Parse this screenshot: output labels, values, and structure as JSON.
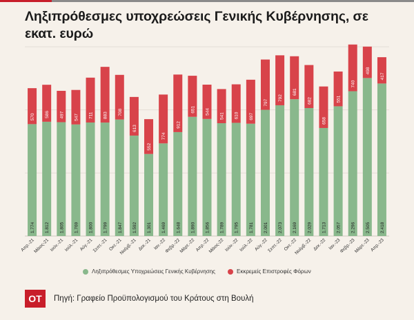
{
  "title": "Ληξιπρόθεσμες υποχρεώσεις Γενικής Κυβέρνησης, σε εκατ. ευρώ",
  "colors": {
    "green": "#89b88c",
    "red": "#d8434a",
    "accent": "#c81e2a",
    "background": "#f6f1ea"
  },
  "logo": {
    "text": "OT"
  },
  "footer": {
    "source": "Πηγή: Γραφείο Προϋπολογισμού του Κράτους στη Βουλή"
  },
  "chart_data": {
    "type": "bar",
    "stacked": true,
    "title": "Ληξιπρόθεσμες υποχρεώσεις Γενικής Κυβέρνησης, σε εκατ. ευρώ",
    "categories": [
      "Απρ.-21",
      "Μάιος-21",
      "Ιούν.-21",
      "Ιούλ.-21",
      "Αύγ.-21",
      "Σεπτ.-21",
      "Οκτ.-21",
      "Νοέμβ.-21",
      "Δεκ.-21",
      "Ιαν.-22",
      "Φεβρ.-22",
      "Μάρτ.-22",
      "Απρ.-22",
      "Μάιος-22",
      "Ιούν.-22",
      "Ιούλ.-22",
      "Αύγ.-22",
      "Σεπτ.-22",
      "Οκτ.-22",
      "Νοέμβ.-22",
      "Δεκ.-22",
      "Ιαν.-23",
      "Φεβρ.-23",
      "Μάρτ.-23",
      "Απρ.-23"
    ],
    "series": [
      {
        "name": "Ληξιπρόθεσμες Υποχρεώσεις Γενικής Κυβέρνησης",
        "color": "#89b88c",
        "labels": [
          "1.774",
          "1.812",
          "1.805",
          "1.769",
          "1.800",
          "1.799",
          "1.847",
          "1.592",
          "1.301",
          "1.469",
          "1.648",
          "1.890",
          "1.856",
          "1.789",
          "1.795",
          "1.781",
          "2.001",
          "2.073",
          "2.169",
          "2.029",
          "1.713",
          "2.057",
          "2.296",
          "2.505",
          "2.418"
        ],
        "values": [
          1774,
          1812,
          1805,
          1769,
          1800,
          1799,
          1847,
          1592,
          1301,
          1469,
          1648,
          1890,
          1856,
          1789,
          1795,
          1781,
          2001,
          2073,
          2169,
          2029,
          1713,
          2057,
          2296,
          2505,
          2418
        ]
      },
      {
        "name": "Εκκρεμείς Επιστροφές Φόρων",
        "color": "#d8434a",
        "labels": [
          "570",
          "586",
          "497",
          "547",
          "711",
          "883",
          "708",
          "613",
          "552",
          "774",
          "912",
          "651",
          "544",
          "541",
          "610",
          "697",
          "797",
          "792",
          "681",
          "682",
          "658",
          "551",
          "740",
          "498",
          "417"
        ],
        "values": [
          570,
          586,
          497,
          547,
          711,
          883,
          708,
          613,
          552,
          774,
          912,
          651,
          544,
          541,
          610,
          697,
          797,
          792,
          681,
          682,
          658,
          551,
          740,
          498,
          417
        ]
      }
    ],
    "ylim": [
      0,
      3000
    ],
    "grid": true,
    "legend": "bottom"
  }
}
